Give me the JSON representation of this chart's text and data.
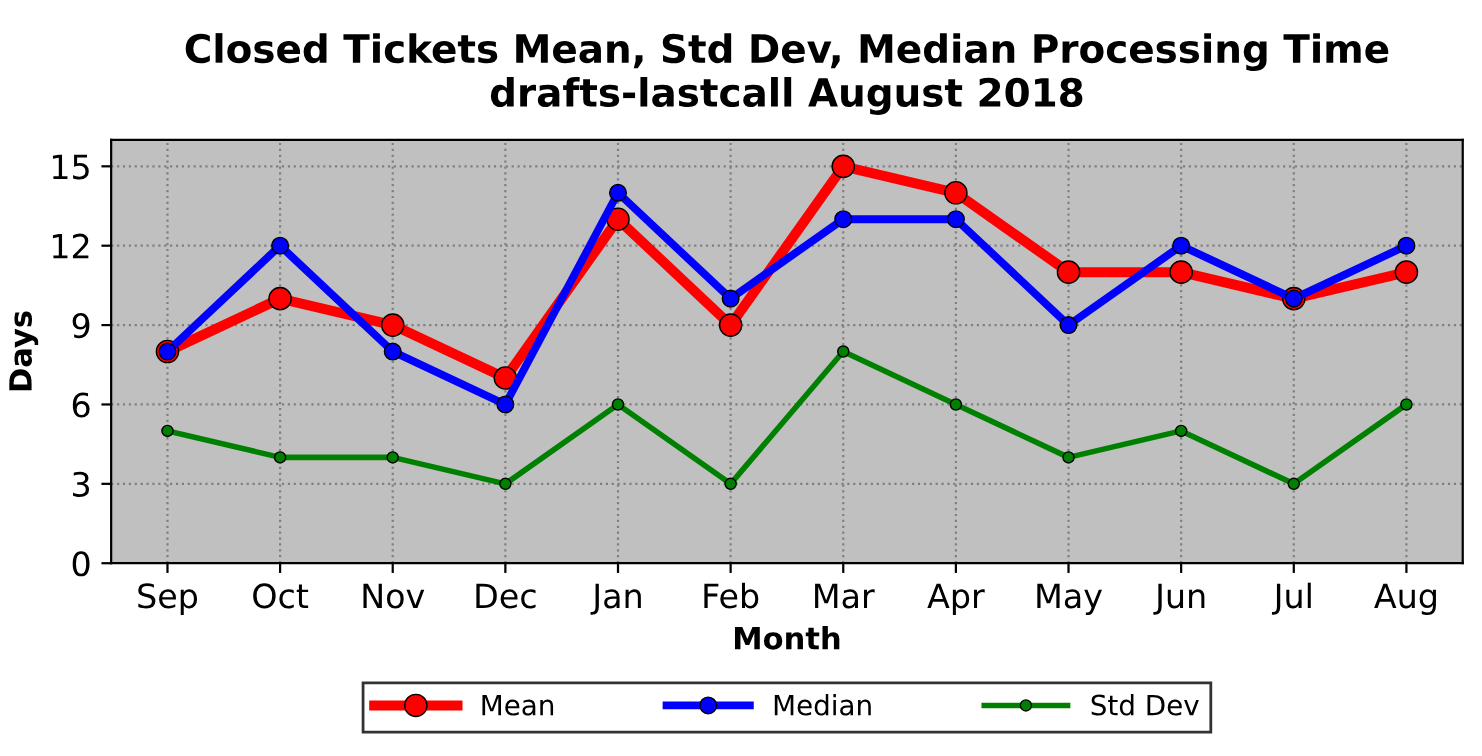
{
  "chart_data": {
    "type": "line",
    "title": "Closed Tickets Mean, Std Dev, Median Processing Time\ndrafts-lastcall August 2018",
    "xlabel": "Month",
    "ylabel": "Days",
    "categories": [
      "Sep",
      "Oct",
      "Nov",
      "Dec",
      "Jan",
      "Feb",
      "Mar",
      "Apr",
      "May",
      "Jun",
      "Jul",
      "Aug"
    ],
    "series": [
      {
        "name": "Mean",
        "color": "#ff0000",
        "values": [
          8,
          10,
          9,
          7,
          13,
          9,
          15,
          14,
          11,
          11,
          10,
          11
        ]
      },
      {
        "name": "Median",
        "color": "#0000ff",
        "values": [
          8,
          12,
          8,
          6,
          14,
          10,
          13,
          13,
          9,
          12,
          10,
          12
        ]
      },
      {
        "name": "Std Dev",
        "color": "#008000",
        "values": [
          5,
          4,
          4,
          3,
          6,
          3,
          8,
          6,
          4,
          5,
          3,
          6
        ]
      }
    ],
    "ylim": [
      0,
      16
    ],
    "yticks": [
      0,
      3,
      6,
      9,
      12,
      15
    ],
    "grid": true,
    "legend": "bottom",
    "marker": "circle",
    "line_style": "solid"
  }
}
